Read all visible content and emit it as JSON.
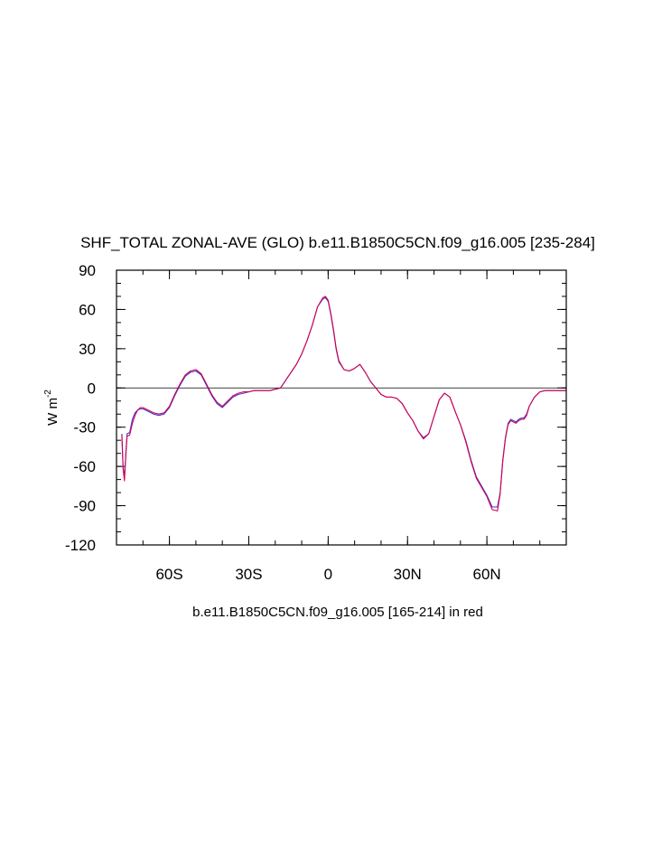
{
  "chart_data": {
    "type": "line",
    "title": "SHF_TOTAL ZONAL-AVE (GLO) b.e11.B1850C5CN.f09_g16.005 [235-284]",
    "caption": "b.e11.B1850C5CN.f09_g16.005 [165-214] in red",
    "xlabel": "",
    "ylabel_main": "W m",
    "ylabel_exp": "-2",
    "xlim": [
      -80,
      90
    ],
    "ylim": [
      -120,
      90
    ],
    "x_ticks": [
      {
        "value": -60,
        "label": "60S"
      },
      {
        "value": -30,
        "label": "30S"
      },
      {
        "value": 0,
        "label": "0"
      },
      {
        "value": 30,
        "label": "30N"
      },
      {
        "value": 60,
        "label": "60N"
      }
    ],
    "y_ticks": [
      {
        "value": 90,
        "label": "90"
      },
      {
        "value": 60,
        "label": "60"
      },
      {
        "value": 30,
        "label": "30"
      },
      {
        "value": 0,
        "label": "0"
      },
      {
        "value": -30,
        "label": "-30"
      },
      {
        "value": -60,
        "label": "-60"
      },
      {
        "value": -90,
        "label": "-90"
      },
      {
        "value": -120,
        "label": "-120"
      }
    ],
    "reference_line": 0,
    "series": [
      {
        "name": "b.e11.B1850C5CN.f09_g16.005 [235-284]",
        "color": "#3b3bd6",
        "x": [
          -78,
          -77.5,
          -77,
          -76.5,
          -76,
          -75,
          -74,
          -73,
          -72,
          -71,
          -70,
          -68,
          -66,
          -64,
          -62,
          -60,
          -58,
          -56,
          -54,
          -52,
          -50,
          -48,
          -46,
          -44,
          -42,
          -40,
          -38,
          -36,
          -34,
          -32,
          -30,
          -28,
          -26,
          -24,
          -22,
          -20,
          -18,
          -16,
          -14,
          -12,
          -10,
          -8,
          -6,
          -4,
          -2,
          -1,
          0,
          1,
          2,
          3,
          4,
          6,
          8,
          10,
          12,
          14,
          16,
          18,
          20,
          22,
          24,
          26,
          28,
          30,
          32,
          34,
          36,
          38,
          40,
          42,
          44,
          46,
          48,
          50,
          52,
          54,
          56,
          58,
          60,
          62,
          64,
          65,
          66,
          67,
          68,
          69,
          70,
          71,
          72,
          73,
          74,
          75,
          76,
          78,
          80,
          82,
          84,
          86,
          88,
          90
        ],
        "y": [
          -35,
          -60,
          -69,
          -50,
          -35,
          -34,
          -24,
          -19,
          -17,
          -16,
          -16,
          -18,
          -20,
          -21,
          -20,
          -15,
          -6,
          2,
          9,
          12,
          13,
          10,
          2,
          -6,
          -12,
          -15,
          -11,
          -7,
          -5,
          -4,
          -3,
          -2,
          -2,
          -2,
          -2,
          -1,
          0,
          6,
          12,
          18,
          26,
          36,
          48,
          62,
          68,
          69,
          66,
          56,
          44,
          30,
          20,
          14,
          13,
          15,
          18,
          12,
          5,
          0,
          -5,
          -7,
          -7,
          -8,
          -12,
          -19,
          -25,
          -33,
          -38,
          -35,
          -22,
          -9,
          -4,
          -7,
          -18,
          -28,
          -40,
          -55,
          -68,
          -75,
          -82,
          -91,
          -91,
          -80,
          -55,
          -38,
          -27,
          -24,
          -25,
          -26,
          -24,
          -23,
          -23,
          -20,
          -14,
          -7,
          -3,
          -2,
          -2,
          -2,
          -2,
          -2
        ]
      },
      {
        "name": "b.e11.B1850C5CN.f09_g16.005 [165-214]",
        "color": "#d4004f",
        "x": [
          -78,
          -77.5,
          -77,
          -76.5,
          -76,
          -75,
          -74,
          -73,
          -72,
          -71,
          -70,
          -68,
          -66,
          -64,
          -62,
          -60,
          -58,
          -56,
          -54,
          -52,
          -50,
          -48,
          -46,
          -44,
          -42,
          -40,
          -38,
          -36,
          -34,
          -32,
          -30,
          -28,
          -26,
          -24,
          -22,
          -20,
          -18,
          -16,
          -14,
          -12,
          -10,
          -8,
          -6,
          -4,
          -2,
          -1,
          0,
          1,
          2,
          3,
          4,
          6,
          8,
          10,
          12,
          14,
          16,
          18,
          20,
          22,
          24,
          26,
          28,
          30,
          32,
          34,
          36,
          38,
          40,
          42,
          44,
          46,
          48,
          50,
          52,
          54,
          56,
          58,
          60,
          62,
          64,
          65,
          66,
          67,
          68,
          69,
          70,
          71,
          72,
          73,
          74,
          75,
          76,
          78,
          80,
          82,
          84,
          86,
          88,
          90
        ],
        "y": [
          -36,
          -62,
          -71,
          -52,
          -37,
          -36,
          -27,
          -21,
          -17,
          -15,
          -15,
          -17,
          -19,
          -20,
          -19,
          -14,
          -5,
          3,
          10,
          13,
          14,
          11,
          3,
          -5,
          -11,
          -14,
          -10,
          -6,
          -4,
          -3,
          -3,
          -2,
          -2,
          -2,
          -2,
          -1,
          0,
          6,
          12,
          18,
          26,
          36,
          48,
          62,
          69,
          70,
          67,
          57,
          45,
          31,
          21,
          14,
          13,
          15,
          18,
          12,
          5,
          0,
          -5,
          -7,
          -7,
          -8,
          -12,
          -19,
          -25,
          -33,
          -39,
          -35,
          -22,
          -9,
          -4,
          -7,
          -18,
          -28,
          -41,
          -56,
          -69,
          -76,
          -83,
          -93,
          -94,
          -81,
          -56,
          -39,
          -28,
          -25,
          -26,
          -27,
          -25,
          -24,
          -24,
          -21,
          -14,
          -7,
          -3,
          -2,
          -2,
          -2,
          -2,
          -2
        ]
      }
    ]
  }
}
